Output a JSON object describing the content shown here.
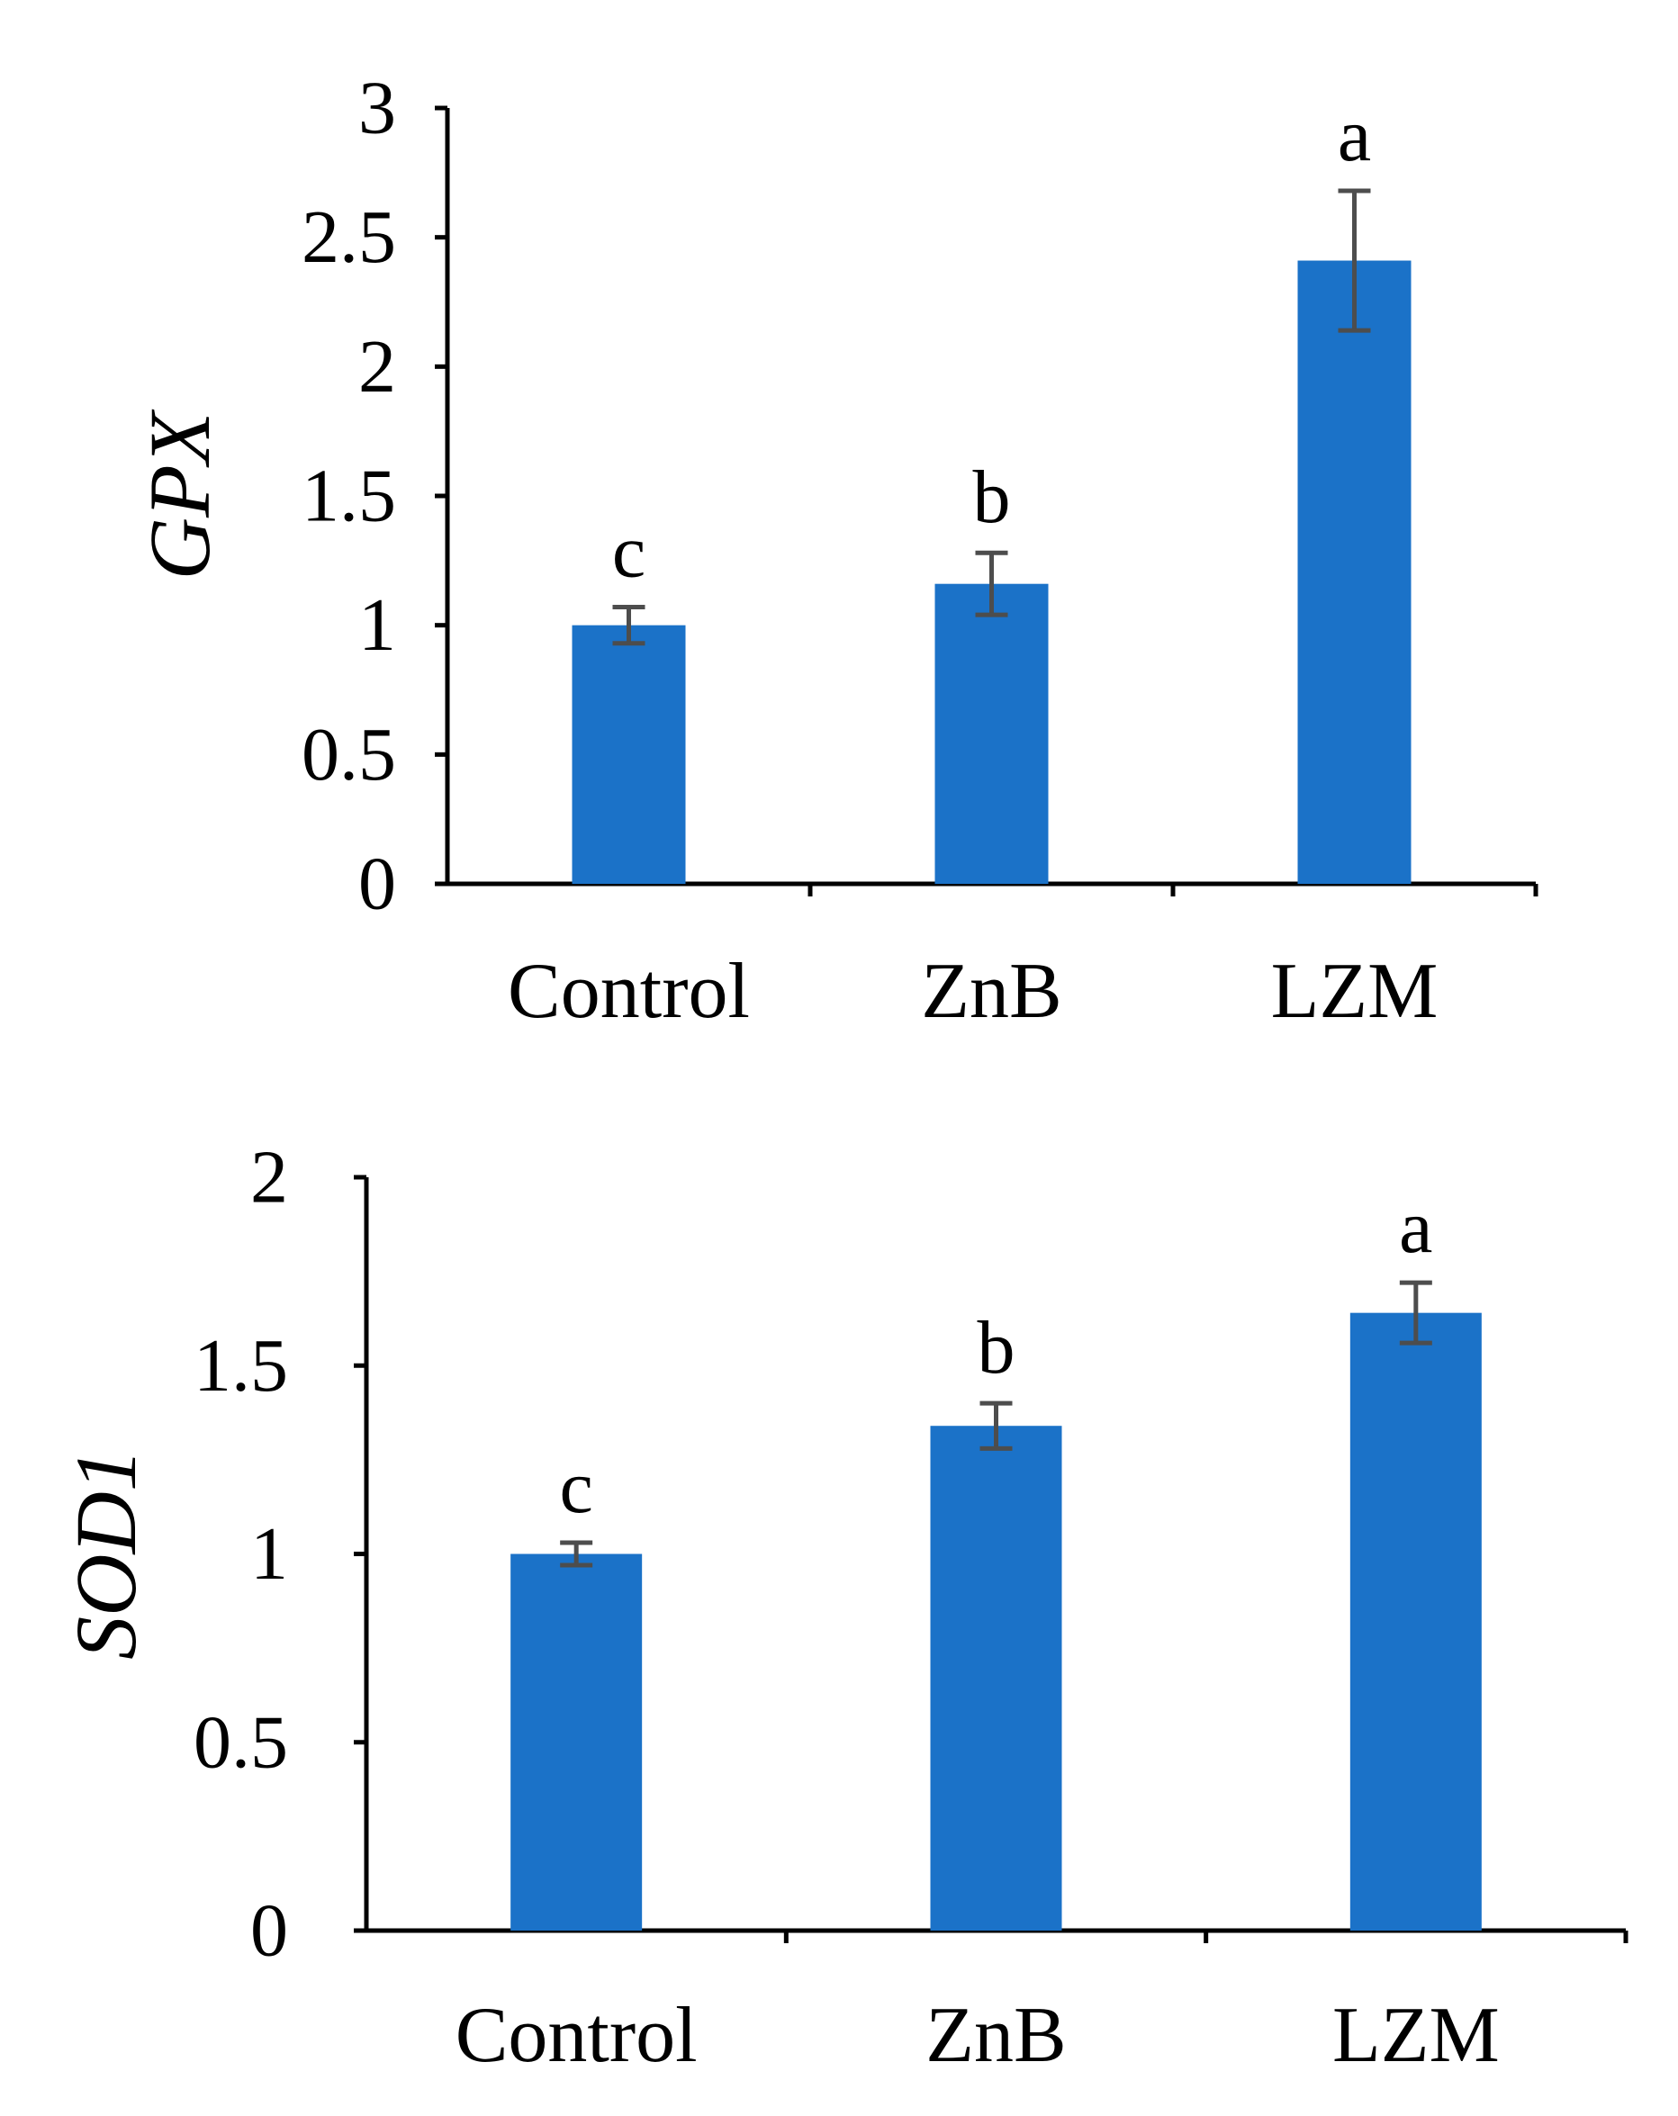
{
  "chart_data": [
    {
      "type": "bar",
      "title": "",
      "xlabel": "",
      "ylabel": "GPX",
      "ylim": [
        0,
        3
      ],
      "yticks": [
        0,
        0.5,
        1,
        1.5,
        2,
        2.5,
        3
      ],
      "ytick_labels": [
        "0",
        "0.5",
        "1",
        "1.5",
        "2",
        "2.5",
        "3"
      ],
      "categories": [
        "Control",
        "ZnB",
        "LZM"
      ],
      "values": [
        1.0,
        1.16,
        2.41
      ],
      "errors": [
        0.07,
        0.12,
        0.27
      ],
      "significance": [
        "c",
        "b",
        "a"
      ],
      "bar_color": "#1b72c8",
      "error_color": "#4d4d4d",
      "grid": false
    },
    {
      "type": "bar",
      "title": "",
      "xlabel": "",
      "ylabel": "SOD1",
      "ylim": [
        0,
        2
      ],
      "yticks": [
        0,
        0.5,
        1,
        1.5,
        2
      ],
      "ytick_labels": [
        "0",
        "0.5",
        "1",
        "1.5",
        "2"
      ],
      "categories": [
        "Control",
        "ZnB",
        "LZM"
      ],
      "values": [
        1.0,
        1.34,
        1.64
      ],
      "errors": [
        0.03,
        0.06,
        0.08
      ],
      "significance": [
        "c",
        "b",
        "a"
      ],
      "bar_color": "#1b72c8",
      "error_color": "#4d4d4d",
      "grid": false
    }
  ]
}
